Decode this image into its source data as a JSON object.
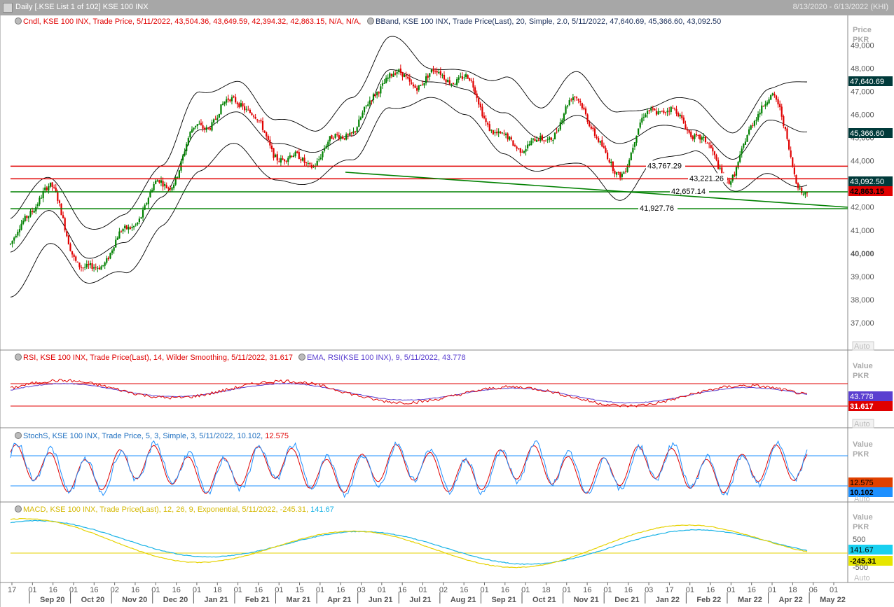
{
  "window": {
    "title": "Daily [.KSE List 1 of 102] KSE 100 INX",
    "date_range": "8/13/2020 - 6/13/2022 (KHI)"
  },
  "panels": {
    "price": {
      "legend1": "Cndl, KSE 100 INX, Trade Price, 5/11/2022, 43,504.36, 43,649.59, 42,394.32, 42,863.15, N/A, N/A,",
      "legend2": "BBand, KSE 100 INX, Trade Price(Last), 20, Simple, 2.0, 5/11/2022, 47,640.69, 45,366.60, 43,092.50",
      "axis_title": "Price",
      "axis_unit": "PKR",
      "ticks": [
        "49,000",
        "48,000",
        "47,000",
        "46,000",
        "45,000",
        "44,000",
        "43,000",
        "42,000",
        "41,000",
        "40,000",
        "39,000",
        "38,000",
        "37,000"
      ],
      "tags": {
        "upper": "47,640.69",
        "middle": "45,366.60",
        "lower": "43,092.50",
        "close": "42,863.15"
      },
      "hlines": [
        "43,767.29",
        "43,221.26",
        "42,657.14",
        "41,927.76"
      ],
      "auto": "Auto"
    },
    "rsi": {
      "legend1": "RSI, KSE 100 INX, Trade Price(Last),  14, Wilder Smoothing,  5/11/2022, 31.617",
      "legend2": "EMA, RSI(KSE 100 INX),  9,  5/11/2022, 43.778",
      "axis_title": "Value",
      "axis_unit": "PKR",
      "tags": {
        "ema": "43.778",
        "rsi": "31.617"
      },
      "auto": "Auto"
    },
    "stoch": {
      "legend1": "StochS, KSE 100 INX, Trade Price,  5, 3, Simple,  3,  5/11/2022, 10.102,",
      "legend2": "12.575",
      "axis_title": "Value",
      "axis_unit": "PKR",
      "tags": {
        "d": "12.575",
        "k": "10.102"
      },
      "auto": "Auto"
    },
    "macd": {
      "legend1": "MACD, KSE 100 INX, Trade Price(Last),  12, 26, 9, Exponential,  5/11/2022, -245.31,",
      "legend2": "141.67",
      "axis_title": "Value",
      "axis_unit": "PKR",
      "ticks": [
        "500",
        "-500"
      ],
      "tags": {
        "signal": "141.67",
        "macd": "-245.31"
      },
      "auto": "Auto"
    }
  },
  "xaxis": {
    "days": [
      "17",
      "01",
      "16",
      "01",
      "16",
      "02",
      "16",
      "01",
      "16",
      "01",
      "18",
      "01",
      "16",
      "01",
      "15",
      "01",
      "16",
      "03",
      "01",
      "16",
      "01",
      "02",
      "16",
      "01",
      "16",
      "01",
      "18",
      "01",
      "16",
      "01",
      "16",
      "03",
      "17",
      "01",
      "16",
      "01",
      "16",
      "01",
      "18",
      "06",
      "01"
    ],
    "months": [
      "Sep 20",
      "Oct 20",
      "Nov 20",
      "Dec 20",
      "Jan 21",
      "Feb 21",
      "Mar 21",
      "Apr 21",
      "Jun 21",
      "Jul 21",
      "Aug 21",
      "Sep 21",
      "Oct 21",
      "Nov 21",
      "Dec 21",
      "Jan 22",
      "Feb 22",
      "Mar 22",
      "Apr 22",
      "May 22"
    ]
  },
  "colors": {
    "up": "#008000",
    "down": "#e00000",
    "bband": "#000000",
    "red_line": "#e00000",
    "green_line": "#008000",
    "rsi": "#e00000",
    "rsi_ema": "#5a3fd0",
    "stoch_k": "#1e90ff",
    "stoch_d": "#e00000",
    "macd": "#e6d200",
    "signal": "#19b3e6"
  },
  "chart_data": [
    {
      "type": "candlestick",
      "title": "Cndl, KSE 100 INX, Trade Price",
      "ylabel": "Price PKR",
      "ylim": [
        36000,
        49800
      ],
      "x": [
        "2020-08",
        "2020-09",
        "2020-10",
        "2020-11",
        "2020-12",
        "2021-01",
        "2021-02",
        "2021-03",
        "2021-04",
        "2021-05",
        "2021-06",
        "2021-07",
        "2021-08",
        "2021-09",
        "2021-10",
        "2021-11",
        "2021-12",
        "2022-01",
        "2022-02",
        "2022-03",
        "2022-04",
        "2022-05"
      ],
      "series": [
        {
          "name": "Close",
          "values": [
            40400,
            42500,
            39500,
            40600,
            42800,
            45800,
            46300,
            44500,
            44200,
            45000,
            48000,
            47500,
            47200,
            45200,
            44500,
            46500,
            43800,
            46000,
            45500,
            43500,
            46500,
            42863.15
          ]
        },
        {
          "name": "BBand Upper",
          "values": [
            41500,
            43200,
            41000,
            41800,
            44000,
            46800,
            47200,
            46000,
            45500,
            46500,
            49200,
            48200,
            48000,
            47500,
            46200,
            47800,
            46200,
            46500,
            46500,
            45000,
            47300,
            47640.69
          ]
        },
        {
          "name": "BBand Middle",
          "values": [
            40000,
            41800,
            39800,
            40500,
            42500,
            45300,
            46000,
            44800,
            44500,
            45000,
            47800,
            47500,
            47200,
            46000,
            44900,
            46000,
            44800,
            45500,
            45300,
            44000,
            45800,
            45366.6
          ]
        },
        {
          "name": "BBand Lower",
          "values": [
            38000,
            40200,
            38800,
            39300,
            41200,
            43500,
            44600,
            43200,
            43300,
            44000,
            46000,
            46800,
            46300,
            44200,
            43300,
            44000,
            42500,
            44000,
            44300,
            42700,
            43500,
            43092.5
          ]
        }
      ],
      "hlines": [
        43767.29,
        43221.26,
        42657.14,
        41927.76
      ]
    },
    {
      "type": "line",
      "title": "RSI, KSE 100 INX",
      "series": [
        {
          "name": "RSI",
          "last": 31.617
        },
        {
          "name": "EMA",
          "last": 43.778
        }
      ]
    },
    {
      "type": "line",
      "title": "StochS, KSE 100 INX",
      "series": [
        {
          "name": "%K",
          "last": 10.102
        },
        {
          "name": "%D",
          "last": 12.575
        }
      ]
    },
    {
      "type": "line",
      "title": "MACD, KSE 100 INX",
      "yticks": [
        500,
        -500
      ],
      "series": [
        {
          "name": "MACD",
          "last": -245.31
        },
        {
          "name": "Signal",
          "last": 141.67
        }
      ]
    }
  ]
}
